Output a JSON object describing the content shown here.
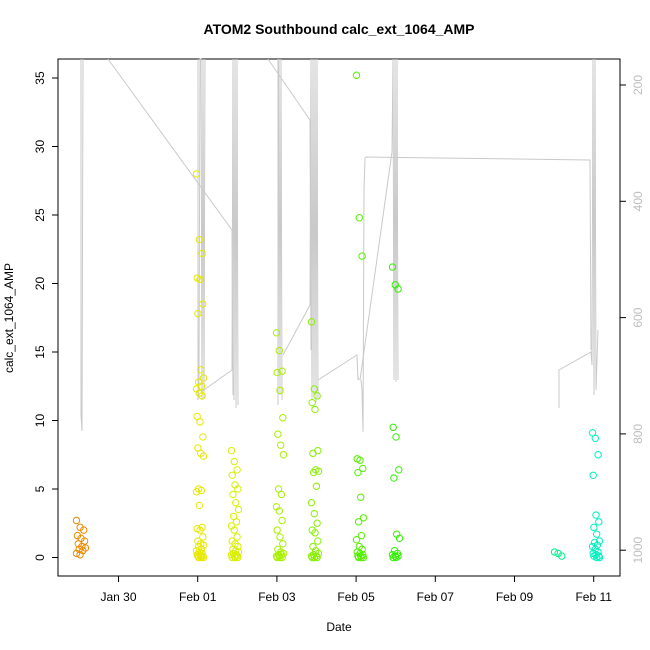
{
  "chart_data": {
    "type": "scatter",
    "title": "ATOM2 Southbound calc_ext_1064_AMP",
    "xlabel": "Date",
    "ylabel": "calc_ext_1064_AMP",
    "x_axis": {
      "ticks": [
        "Jan 30",
        "Feb 01",
        "Feb 03",
        "Feb 05",
        "Feb 07",
        "Feb 09",
        "Feb 11"
      ],
      "range_days_from_jan30": [
        -1.4,
        11.5
      ]
    },
    "ylim": [
      -1.4,
      36.5
    ],
    "y_ticks": [
      0,
      5,
      10,
      15,
      20,
      25,
      30,
      35
    ],
    "y_right": {
      "ticks": [
        200,
        400,
        600,
        800,
        1000
      ],
      "range": [
        1054,
        124
      ],
      "inverted": true,
      "color": "#bdbdbd"
    },
    "grid": false,
    "color_scale": "time: orange → yellow → green → cyan",
    "series": [
      {
        "date": "Jan 28",
        "color": "#ee8a00",
        "values": [
          2.7,
          2.2,
          2.0,
          1.6,
          1.4,
          1.2,
          1.0,
          0.8,
          0.7,
          0.6,
          0.5,
          0.3,
          0.2
        ]
      },
      {
        "date": "Feb 01",
        "color": "#e8e800",
        "values": [
          28.0,
          23.2,
          22.2,
          20.4,
          20.3,
          18.5,
          17.8,
          13.7,
          13.1,
          12.8,
          12.5,
          12.3,
          12.0,
          11.8,
          10.3,
          9.9,
          8.8,
          8.0,
          7.6,
          7.4,
          5.0,
          4.9,
          4.8,
          3.8,
          2.2,
          2.1,
          2.0,
          1.5,
          1.2,
          1.0,
          0.9,
          0.8,
          0.6,
          0.5,
          0.4,
          0.3,
          0.2,
          0.2,
          0.1,
          0.1,
          0.1,
          0.0,
          0.0,
          0.0
        ]
      },
      {
        "date": "Feb 01 (late)",
        "color": "#d8f000",
        "values": [
          7.8,
          7.0,
          6.4,
          6.0,
          5.3,
          5.0,
          4.6,
          4.0,
          3.5,
          3.0,
          2.6,
          2.3,
          2.0,
          1.5,
          1.2,
          1.0,
          0.8,
          0.6,
          0.5,
          0.4,
          0.3,
          0.2,
          0.2,
          0.1,
          0.1,
          0.0,
          0.0,
          0.0
        ]
      },
      {
        "date": "Feb 03",
        "color": "#a8f000",
        "values": [
          16.4,
          15.1,
          13.6,
          13.5,
          12.2,
          10.2,
          9.0,
          8.2,
          7.5,
          5.0,
          4.6,
          3.7,
          3.4,
          2.7,
          2.0,
          1.5,
          1.0,
          0.6,
          0.4,
          0.3,
          0.2,
          0.2,
          0.1,
          0.1,
          0.0,
          0.0,
          0.0
        ]
      },
      {
        "date": "Feb 04",
        "color": "#88f000",
        "values": [
          17.2,
          12.3,
          11.8,
          11.3,
          10.8,
          7.8,
          7.6,
          6.4,
          6.3,
          6.2,
          5.2,
          4.0,
          3.2,
          2.5,
          2.0,
          1.8,
          1.2,
          0.8,
          0.5,
          0.3,
          0.2,
          0.1,
          0.1,
          0.0,
          0.0,
          0.0
        ]
      },
      {
        "date": "Feb 05",
        "color": "#55f000",
        "values": [
          35.2,
          24.8,
          22.0,
          7.2,
          7.1,
          6.5,
          6.2,
          4.4,
          2.9,
          2.6,
          1.6,
          1.3,
          0.8,
          0.6,
          0.4,
          0.3,
          0.2,
          0.1,
          0.1,
          0.0,
          0.0,
          0.0
        ]
      },
      {
        "date": "Feb 06",
        "color": "#30f000",
        "values": [
          21.2,
          19.9,
          19.6,
          9.5,
          8.8,
          6.4,
          5.8,
          1.7,
          1.4,
          0.5,
          0.3,
          0.2,
          0.1,
          0.1,
          0.0,
          0.0
        ]
      },
      {
        "date": "Feb 10",
        "color": "#00f08a",
        "values": [
          0.4,
          0.3,
          0.1
        ]
      },
      {
        "date": "Feb 11",
        "color": "#00f0c0",
        "values": [
          9.1,
          8.7,
          7.5,
          6.0,
          3.1,
          2.6,
          2.2,
          1.7,
          1.2,
          1.1,
          0.9,
          0.8,
          0.6,
          0.4,
          0.3,
          0.2,
          0.1,
          0.1,
          0.0,
          0.0
        ]
      }
    ]
  }
}
